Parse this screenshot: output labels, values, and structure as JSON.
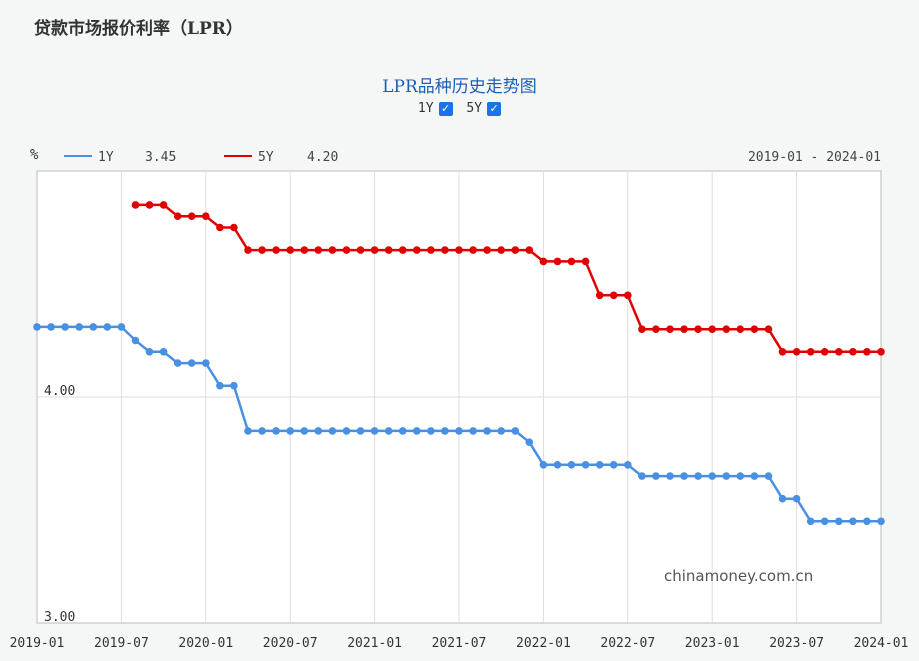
{
  "page": {
    "title": "贷款市场报价利率（LPR）"
  },
  "toggles": [
    {
      "label": "1Y",
      "checked": true,
      "checkmark": "✓"
    },
    {
      "label": "5Y",
      "checked": true,
      "checkmark": "✓"
    }
  ],
  "watermark": "chinamoney.com.cn",
  "chart_data": {
    "type": "line",
    "title": "LPR品种历史走势图",
    "unit_label": "%",
    "date_range_label": "2019-01 - 2024-01",
    "xlim": [
      "2019-01",
      "2024-01"
    ],
    "ylim": [
      3.0,
      5.0
    ],
    "y_ticks": [
      3.0,
      4.0
    ],
    "y_tick_labels": [
      "3.00",
      "4.00"
    ],
    "x_ticks": [
      "2019-01",
      "2019-07",
      "2020-01",
      "2020-07",
      "2021-01",
      "2021-07",
      "2022-01",
      "2022-07",
      "2023-01",
      "2023-07",
      "2024-01"
    ],
    "grid": true,
    "legend_placement": "top-left",
    "series": [
      {
        "name": "1Y",
        "latest_label": "3.45",
        "color": "#4a90e2",
        "points": [
          [
            "2019-01",
            4.31
          ],
          [
            "2019-02",
            4.31
          ],
          [
            "2019-03",
            4.31
          ],
          [
            "2019-04",
            4.31
          ],
          [
            "2019-05",
            4.31
          ],
          [
            "2019-06",
            4.31
          ],
          [
            "2019-07",
            4.31
          ],
          [
            "2019-08",
            4.25
          ],
          [
            "2019-09",
            4.2
          ],
          [
            "2019-10",
            4.2
          ],
          [
            "2019-11",
            4.15
          ],
          [
            "2019-12",
            4.15
          ],
          [
            "2020-01",
            4.15
          ],
          [
            "2020-02",
            4.05
          ],
          [
            "2020-03",
            4.05
          ],
          [
            "2020-04",
            3.85
          ],
          [
            "2020-05",
            3.85
          ],
          [
            "2020-06",
            3.85
          ],
          [
            "2020-07",
            3.85
          ],
          [
            "2020-08",
            3.85
          ],
          [
            "2020-09",
            3.85
          ],
          [
            "2020-10",
            3.85
          ],
          [
            "2020-11",
            3.85
          ],
          [
            "2020-12",
            3.85
          ],
          [
            "2021-01",
            3.85
          ],
          [
            "2021-02",
            3.85
          ],
          [
            "2021-03",
            3.85
          ],
          [
            "2021-04",
            3.85
          ],
          [
            "2021-05",
            3.85
          ],
          [
            "2021-06",
            3.85
          ],
          [
            "2021-07",
            3.85
          ],
          [
            "2021-08",
            3.85
          ],
          [
            "2021-09",
            3.85
          ],
          [
            "2021-10",
            3.85
          ],
          [
            "2021-11",
            3.85
          ],
          [
            "2021-12",
            3.8
          ],
          [
            "2022-01",
            3.7
          ],
          [
            "2022-02",
            3.7
          ],
          [
            "2022-03",
            3.7
          ],
          [
            "2022-04",
            3.7
          ],
          [
            "2022-05",
            3.7
          ],
          [
            "2022-06",
            3.7
          ],
          [
            "2022-07",
            3.7
          ],
          [
            "2022-08",
            3.65
          ],
          [
            "2022-09",
            3.65
          ],
          [
            "2022-10",
            3.65
          ],
          [
            "2022-11",
            3.65
          ],
          [
            "2022-12",
            3.65
          ],
          [
            "2023-01",
            3.65
          ],
          [
            "2023-02",
            3.65
          ],
          [
            "2023-03",
            3.65
          ],
          [
            "2023-04",
            3.65
          ],
          [
            "2023-05",
            3.65
          ],
          [
            "2023-06",
            3.55
          ],
          [
            "2023-07",
            3.55
          ],
          [
            "2023-08",
            3.45
          ],
          [
            "2023-09",
            3.45
          ],
          [
            "2023-10",
            3.45
          ],
          [
            "2023-11",
            3.45
          ],
          [
            "2023-12",
            3.45
          ],
          [
            "2024-01",
            3.45
          ]
        ]
      },
      {
        "name": "5Y",
        "latest_label": "4.20",
        "color": "#e00000",
        "points": [
          [
            "2019-08",
            4.85
          ],
          [
            "2019-09",
            4.85
          ],
          [
            "2019-10",
            4.85
          ],
          [
            "2019-11",
            4.8
          ],
          [
            "2019-12",
            4.8
          ],
          [
            "2020-01",
            4.8
          ],
          [
            "2020-02",
            4.75
          ],
          [
            "2020-03",
            4.75
          ],
          [
            "2020-04",
            4.65
          ],
          [
            "2020-05",
            4.65
          ],
          [
            "2020-06",
            4.65
          ],
          [
            "2020-07",
            4.65
          ],
          [
            "2020-08",
            4.65
          ],
          [
            "2020-09",
            4.65
          ],
          [
            "2020-10",
            4.65
          ],
          [
            "2020-11",
            4.65
          ],
          [
            "2020-12",
            4.65
          ],
          [
            "2021-01",
            4.65
          ],
          [
            "2021-02",
            4.65
          ],
          [
            "2021-03",
            4.65
          ],
          [
            "2021-04",
            4.65
          ],
          [
            "2021-05",
            4.65
          ],
          [
            "2021-06",
            4.65
          ],
          [
            "2021-07",
            4.65
          ],
          [
            "2021-08",
            4.65
          ],
          [
            "2021-09",
            4.65
          ],
          [
            "2021-10",
            4.65
          ],
          [
            "2021-11",
            4.65
          ],
          [
            "2021-12",
            4.65
          ],
          [
            "2022-01",
            4.6
          ],
          [
            "2022-02",
            4.6
          ],
          [
            "2022-03",
            4.6
          ],
          [
            "2022-04",
            4.6
          ],
          [
            "2022-05",
            4.45
          ],
          [
            "2022-06",
            4.45
          ],
          [
            "2022-07",
            4.45
          ],
          [
            "2022-08",
            4.3
          ],
          [
            "2022-09",
            4.3
          ],
          [
            "2022-10",
            4.3
          ],
          [
            "2022-11",
            4.3
          ],
          [
            "2022-12",
            4.3
          ],
          [
            "2023-01",
            4.3
          ],
          [
            "2023-02",
            4.3
          ],
          [
            "2023-03",
            4.3
          ],
          [
            "2023-04",
            4.3
          ],
          [
            "2023-05",
            4.3
          ],
          [
            "2023-06",
            4.2
          ],
          [
            "2023-07",
            4.2
          ],
          [
            "2023-08",
            4.2
          ],
          [
            "2023-09",
            4.2
          ],
          [
            "2023-10",
            4.2
          ],
          [
            "2023-11",
            4.2
          ],
          [
            "2023-12",
            4.2
          ],
          [
            "2024-01",
            4.2
          ]
        ]
      }
    ]
  }
}
